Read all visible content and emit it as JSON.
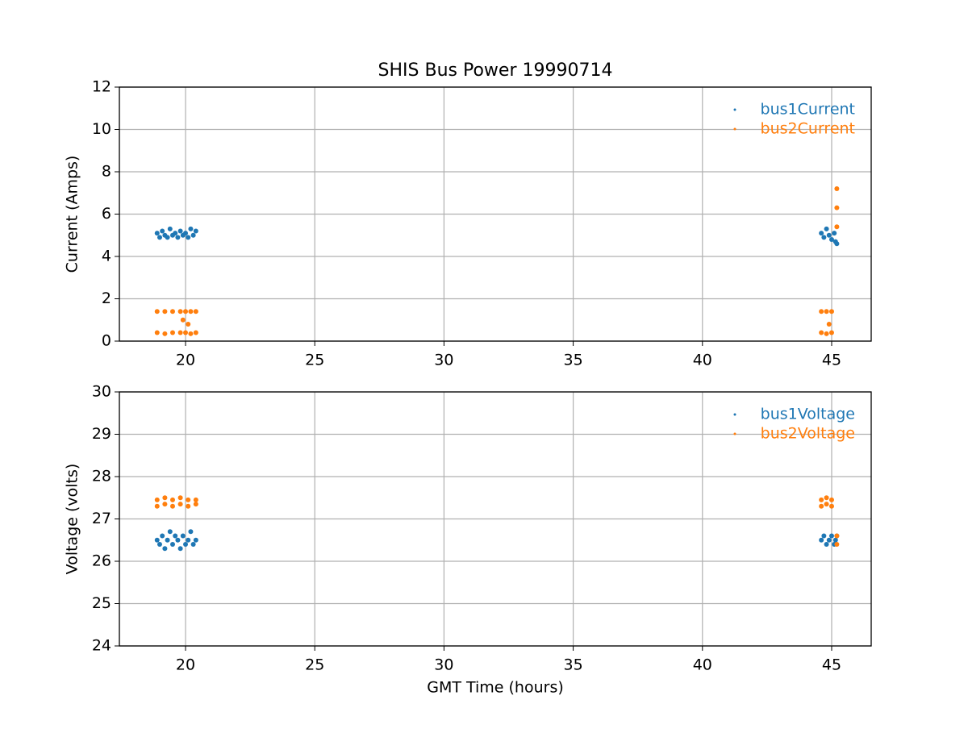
{
  "chart_data": [
    {
      "type": "scatter",
      "title": "SHIS Bus Power 19990714",
      "y_label": "Current (Amps)",
      "xlim": [
        17.44,
        46.53
      ],
      "xticks": [
        20,
        25,
        30,
        35,
        40,
        45
      ],
      "ylim": [
        0,
        12
      ],
      "yticks": [
        0,
        2,
        4,
        6,
        8,
        10,
        12
      ],
      "grid": true,
      "legend": "upper right",
      "series": [
        {
          "name": "bus1Current",
          "color": "#1f77b4",
          "x": [
            18.9,
            19.0,
            19.1,
            19.2,
            19.3,
            19.4,
            19.5,
            19.6,
            19.7,
            19.8,
            19.9,
            20.0,
            20.1,
            20.2,
            20.3,
            20.4,
            44.6,
            44.7,
            44.8,
            44.9,
            45.0,
            45.1,
            45.15,
            45.2
          ],
          "values": [
            5.1,
            4.9,
            5.2,
            5.0,
            4.9,
            5.3,
            5.0,
            5.1,
            4.9,
            5.2,
            5.0,
            5.1,
            4.9,
            5.3,
            5.0,
            5.2,
            5.1,
            4.9,
            5.3,
            5.0,
            4.8,
            5.1,
            4.7,
            4.6
          ]
        },
        {
          "name": "bus2Current",
          "color": "#ff7f0e",
          "x": [
            18.9,
            18.9,
            19.2,
            19.2,
            19.5,
            19.5,
            19.8,
            19.8,
            20.0,
            20.0,
            20.2,
            20.2,
            20.4,
            20.4,
            19.9,
            20.1,
            44.6,
            44.6,
            44.8,
            44.8,
            45.0,
            45.0,
            45.2,
            45.2,
            45.2,
            44.9
          ],
          "values": [
            1.4,
            0.4,
            1.4,
            0.35,
            1.4,
            0.4,
            1.4,
            0.4,
            1.4,
            0.4,
            1.4,
            0.35,
            1.4,
            0.4,
            1.0,
            0.8,
            1.4,
            0.4,
            1.4,
            0.35,
            1.4,
            0.4,
            7.2,
            6.3,
            5.4,
            0.8
          ]
        }
      ]
    },
    {
      "type": "scatter",
      "x_label": "GMT Time (hours)",
      "y_label": "Voltage (volts)",
      "xlim": [
        17.44,
        46.53
      ],
      "xticks": [
        20,
        25,
        30,
        35,
        40,
        45
      ],
      "ylim": [
        24,
        30
      ],
      "yticks": [
        24,
        25,
        26,
        27,
        28,
        29,
        30
      ],
      "grid": true,
      "legend": "upper right",
      "series": [
        {
          "name": "bus1Voltage",
          "color": "#1f77b4",
          "x": [
            18.9,
            19.0,
            19.1,
            19.2,
            19.3,
            19.4,
            19.5,
            19.6,
            19.7,
            19.8,
            19.9,
            20.0,
            20.1,
            20.2,
            20.3,
            20.4,
            44.6,
            44.7,
            44.8,
            44.9,
            45.0,
            45.1,
            45.15,
            45.2
          ],
          "values": [
            26.5,
            26.4,
            26.6,
            26.3,
            26.5,
            26.7,
            26.4,
            26.6,
            26.5,
            26.3,
            26.6,
            26.4,
            26.5,
            26.7,
            26.4,
            26.5,
            26.5,
            26.6,
            26.4,
            26.5,
            26.6,
            26.4,
            26.5,
            26.6
          ]
        },
        {
          "name": "bus2Voltage",
          "color": "#ff7f0e",
          "x": [
            18.9,
            18.9,
            19.2,
            19.2,
            19.5,
            19.5,
            19.8,
            19.8,
            20.1,
            20.1,
            20.4,
            20.4,
            44.6,
            44.6,
            44.8,
            44.8,
            45.0,
            45.0,
            45.2,
            45.2
          ],
          "values": [
            27.45,
            27.3,
            27.5,
            27.35,
            27.45,
            27.3,
            27.5,
            27.35,
            27.45,
            27.3,
            27.45,
            27.35,
            27.45,
            27.3,
            27.5,
            27.35,
            27.45,
            27.3,
            26.6,
            26.4
          ]
        }
      ]
    }
  ]
}
